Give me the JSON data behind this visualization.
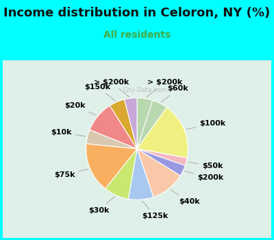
{
  "title": "Income distribution in Celoron, NY (%)",
  "subtitle": "All residents",
  "background_color": "#00FFFF",
  "chart_bg_start": "#e8f5f0",
  "slices": [
    {
      "label": "> $200k",
      "value": 5.0,
      "color": "#b8d8b0"
    },
    {
      "label": "$60k",
      "value": 5.0,
      "color": "#b8d8b0"
    },
    {
      "label": "$100k",
      "value": 18.0,
      "color": "#f0f080"
    },
    {
      "label": "$50k",
      "value": 2.5,
      "color": "#f4b8c0"
    },
    {
      "label": "$200k",
      "value": 3.5,
      "color": "#9898e0"
    },
    {
      "label": "$40k",
      "value": 11.0,
      "color": "#f8c8a8"
    },
    {
      "label": "$125k",
      "value": 8.0,
      "color": "#a8c8f0"
    },
    {
      "label": "$30k",
      "value": 8.0,
      "color": "#c8e870"
    },
    {
      "label": "$75k",
      "value": 16.0,
      "color": "#f8b060"
    },
    {
      "label": "$10k",
      "value": 4.5,
      "color": "#d8c8b0"
    },
    {
      "label": "$20k",
      "value": 10.0,
      "color": "#f08888"
    },
    {
      "label": "$150k",
      "value": 5.0,
      "color": "#d8a830"
    },
    {
      "label": "$150k_v",
      "value": 4.0,
      "color": "#c8a8d8"
    }
  ],
  "title_fontsize": 13,
  "subtitle_fontsize": 10,
  "label_fontsize": 8,
  "watermark": "City-Data.com"
}
